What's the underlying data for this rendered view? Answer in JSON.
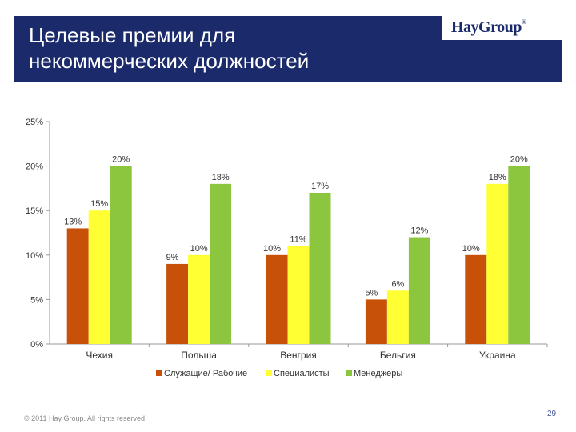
{
  "slide": {
    "title": "Целевые премии для\nнекоммерческих должностей",
    "logo": "HayGroup",
    "logo_mark": "®",
    "footer": "© 2011 Hay Group. All rights reserved",
    "page_number": "29"
  },
  "colors": {
    "header_bg": "#1b2a6b",
    "series": [
      "#c8510a",
      "#ffff33",
      "#8cc63f"
    ]
  },
  "chart_data": {
    "type": "bar",
    "categories": [
      "Чехия",
      "Польша",
      "Венгрия",
      "Бельгия",
      "Украина"
    ],
    "series": [
      {
        "name": "Служащие/ Рабочие",
        "values": [
          13,
          9,
          10,
          5,
          10
        ]
      },
      {
        "name": "Специалисты",
        "values": [
          15,
          10,
          11,
          6,
          18
        ]
      },
      {
        "name": "Менеджеры",
        "values": [
          20,
          18,
          17,
          12,
          20
        ]
      }
    ],
    "data_labels": [
      [
        "13%",
        "9%",
        "10%",
        "5%",
        "10%"
      ],
      [
        "15%",
        "10%",
        "11%",
        "6%",
        "18%"
      ],
      [
        "20%",
        "18%",
        "17%",
        "12%",
        "20%"
      ]
    ],
    "ylim": [
      0,
      25
    ],
    "yticks": [
      0,
      5,
      10,
      15,
      20,
      25
    ],
    "ytick_labels": [
      "0%",
      "5%",
      "10%",
      "15%",
      "20%",
      "25%"
    ],
    "grid": false,
    "legend": "bottom"
  }
}
